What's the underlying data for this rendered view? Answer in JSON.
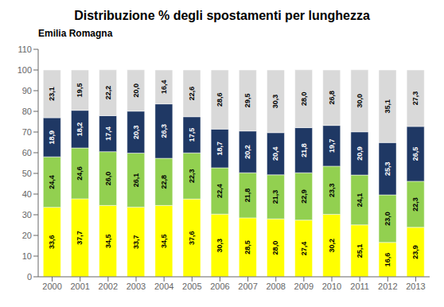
{
  "chart_data": {
    "type": "bar",
    "title": "Distribuzione % degli spostamenti per lunghezza",
    "subtitle": "Emilia Romagna",
    "categories": [
      "2000",
      "2001",
      "2002",
      "2003",
      "2004",
      "2005",
      "2006",
      "2007",
      "2008",
      "2009",
      "2010",
      "2011",
      "2012",
      "2013"
    ],
    "series": [
      {
        "color": "#FFFF00",
        "values": [
          33.6,
          37.7,
          34.5,
          33.7,
          34.5,
          37.6,
          30.3,
          28.5,
          28.0,
          27.4,
          30.2,
          25.1,
          16.6,
          23.9
        ],
        "value_labels": [
          "33,6",
          "37,7",
          "34,5",
          "33,7",
          "34,5",
          "37,6",
          "30,3",
          "28,5",
          "28,0",
          "27,4",
          "30,2",
          "25,1",
          "16,6",
          "23,9"
        ]
      },
      {
        "color": "#92D050",
        "values": [
          24.4,
          24.6,
          26.0,
          26.1,
          22.8,
          22.3,
          22.4,
          21.8,
          21.3,
          22.9,
          23.3,
          24.1,
          23.0,
          22.3
        ],
        "value_labels": [
          "24,4",
          "24,6",
          "26,0",
          "26,1",
          "22,8",
          "22,3",
          "22,4",
          "21,8",
          "21,3",
          "22,9",
          "23,3",
          "24,1",
          "23,0",
          "22,3"
        ]
      },
      {
        "color": "#1F3864",
        "values": [
          18.9,
          18.2,
          17.4,
          20.3,
          26.3,
          17.5,
          18.7,
          20.2,
          20.4,
          21.8,
          19.7,
          20.9,
          25.3,
          26.5
        ],
        "value_labels": [
          "18,9",
          "18,2",
          "17,4",
          "20,3",
          "26,3",
          "17,5",
          "18,7",
          "20,2",
          "20,4",
          "21,8",
          "19,7",
          "20,9",
          "25,3",
          "26,5"
        ]
      },
      {
        "color": "#D9D9D9",
        "values": [
          23.1,
          19.5,
          22.2,
          20.0,
          16.4,
          22.6,
          28.6,
          29.5,
          30.3,
          28.0,
          26.8,
          30.0,
          35.1,
          27.3
        ],
        "value_labels": [
          "23,1",
          "19,5",
          "22,2",
          "20,0",
          "16,4",
          "22,6",
          "28,6",
          "29,5",
          "30,3",
          "28,0",
          "26,8",
          "30,0",
          "35,1",
          "27,3"
        ]
      }
    ],
    "ylim": [
      0,
      110
    ],
    "yticks": [
      0,
      10,
      20,
      30,
      40,
      50,
      60,
      70,
      80,
      90,
      100,
      110
    ],
    "stacked": true,
    "data_labels": true,
    "grid": false
  }
}
